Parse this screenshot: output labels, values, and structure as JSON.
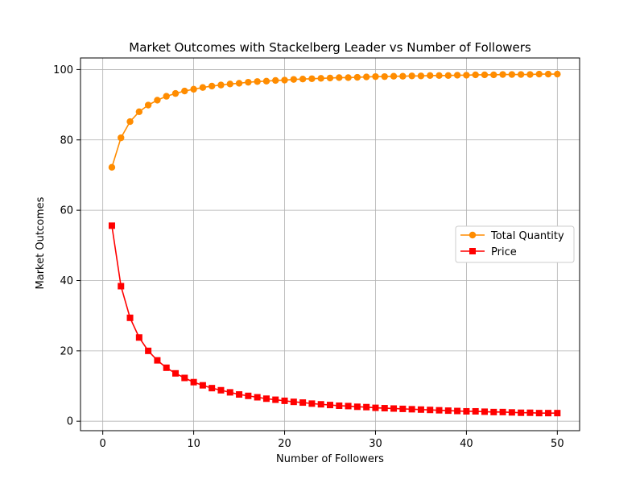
{
  "chart_data": {
    "type": "line",
    "title": "Market Outcomes with Stackelberg Leader vs Number of Followers",
    "xlabel": "Number of Followers",
    "ylabel": "Market Outcomes",
    "xlim": [
      -2.45,
      52.45
    ],
    "ylim": [
      -2.7,
      103.3
    ],
    "xticks": [
      "0",
      "10",
      "20",
      "30",
      "40",
      "50"
    ],
    "yticks": [
      "0",
      "20",
      "40",
      "60",
      "80",
      "100"
    ],
    "grid": true,
    "legend_position": "center-right",
    "x": [
      1,
      2,
      3,
      4,
      5,
      6,
      7,
      8,
      9,
      10,
      11,
      12,
      13,
      14,
      15,
      16,
      17,
      18,
      19,
      20,
      21,
      22,
      23,
      24,
      25,
      26,
      27,
      28,
      29,
      30,
      31,
      32,
      33,
      34,
      35,
      36,
      37,
      38,
      39,
      40,
      41,
      42,
      43,
      44,
      45,
      46,
      47,
      48,
      49,
      50
    ],
    "series": [
      {
        "name": "Total Quantity",
        "color": "#ff8c00",
        "marker": "circle",
        "values": [
          72.2,
          80.6,
          85.2,
          88.0,
          89.9,
          91.3,
          92.4,
          93.2,
          93.9,
          94.4,
          94.9,
          95.3,
          95.6,
          95.9,
          96.1,
          96.4,
          96.6,
          96.7,
          96.9,
          97.0,
          97.2,
          97.3,
          97.4,
          97.5,
          97.6,
          97.7,
          97.7,
          97.8,
          97.9,
          98.0,
          98.0,
          98.1,
          98.1,
          98.2,
          98.2,
          98.3,
          98.3,
          98.3,
          98.4,
          98.4,
          98.5,
          98.5,
          98.5,
          98.6,
          98.6,
          98.6,
          98.6,
          98.7,
          98.7,
          98.7
        ]
      },
      {
        "name": "Price",
        "color": "#ff0000",
        "marker": "square",
        "values": [
          55.6,
          38.4,
          29.4,
          23.8,
          20.0,
          17.3,
          15.2,
          13.6,
          12.3,
          11.1,
          10.2,
          9.4,
          8.8,
          8.2,
          7.6,
          7.2,
          6.8,
          6.4,
          6.1,
          5.8,
          5.5,
          5.3,
          5.0,
          4.8,
          4.6,
          4.4,
          4.3,
          4.1,
          4.0,
          3.8,
          3.7,
          3.6,
          3.5,
          3.4,
          3.3,
          3.2,
          3.1,
          3.0,
          2.9,
          2.8,
          2.8,
          2.7,
          2.6,
          2.6,
          2.5,
          2.4,
          2.4,
          2.3,
          2.3,
          2.3
        ]
      }
    ]
  }
}
